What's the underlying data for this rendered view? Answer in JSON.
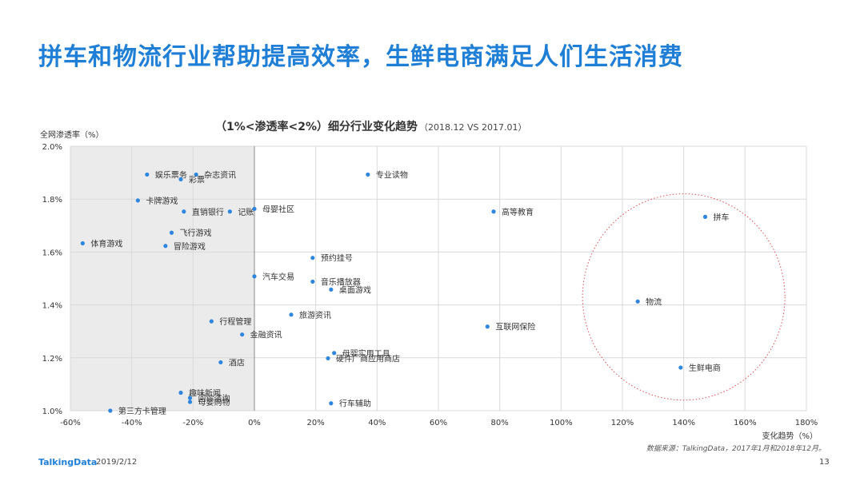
{
  "page": {
    "title": "拼车和物流行业帮助提高效率，生鲜电商满足人们生活消费",
    "source": "数据来源：TalkingData，2017年1月和2018年12月。",
    "logo": "TalkingData",
    "date": "2019/2/12",
    "page_number": "13"
  },
  "chart_data": {
    "type": "scatter",
    "title": "（1%<渗透率<2%）细分行业变化趋势",
    "subtitle": "（2018.12  VS 2017.01）",
    "xlabel": "变化趋势（%）",
    "ylabel": "全网渗透率（%）",
    "xlim": [
      -60,
      180
    ],
    "ylim": [
      1.0,
      2.0
    ],
    "x_ticks": [
      "-60%",
      "-40%",
      "-20%",
      "0%",
      "20%",
      "40%",
      "60%",
      "80%",
      "100%",
      "120%",
      "140%",
      "160%",
      "180%"
    ],
    "y_ticks": [
      "1.0%",
      "1.2%",
      "1.4%",
      "1.6%",
      "1.8%",
      "2.0%"
    ],
    "grid": true,
    "shaded_region": {
      "x": [
        -60,
        0
      ],
      "color": "#ebebeb"
    },
    "highlight_circle": {
      "cx": 140,
      "cy": 1.43,
      "rx": 33,
      "ry": 0.39,
      "color": "#e05050"
    },
    "point_color": "#2e86de",
    "points": [
      {
        "label": "娱乐票务",
        "x": -35,
        "y": 1.893
      },
      {
        "label": "杂志资讯",
        "x": -19,
        "y": 1.893
      },
      {
        "label": "彩票",
        "x": -24,
        "y": 1.875
      },
      {
        "label": "卡牌游戏",
        "x": -38,
        "y": 1.795
      },
      {
        "label": "直销银行",
        "x": -23,
        "y": 1.753
      },
      {
        "label": "记账",
        "x": -8,
        "y": 1.753
      },
      {
        "label": "母婴社区",
        "x": 0,
        "y": 1.763
      },
      {
        "label": "飞行游戏",
        "x": -27,
        "y": 1.673
      },
      {
        "label": "体育游戏",
        "x": -56,
        "y": 1.633
      },
      {
        "label": "冒险游戏",
        "x": -29,
        "y": 1.623
      },
      {
        "label": "专业读物",
        "x": 37,
        "y": 1.893
      },
      {
        "label": "高等教育",
        "x": 78,
        "y": 1.753
      },
      {
        "label": "拼车",
        "x": 147,
        "y": 1.733
      },
      {
        "label": "预约挂号",
        "x": 19,
        "y": 1.578
      },
      {
        "label": "汽车交易",
        "x": 0,
        "y": 1.508
      },
      {
        "label": "音乐播放器",
        "x": 19,
        "y": 1.488
      },
      {
        "label": "桌面游戏",
        "x": 25,
        "y": 1.458
      },
      {
        "label": "物流",
        "x": 125,
        "y": 1.413
      },
      {
        "label": "旅游资讯",
        "x": 12,
        "y": 1.363
      },
      {
        "label": "行程管理",
        "x": -14,
        "y": 1.338
      },
      {
        "label": "互联网保险",
        "x": 76,
        "y": 1.318
      },
      {
        "label": "金融资讯",
        "x": -4,
        "y": 1.288
      },
      {
        "label": "母婴实用工具",
        "x": 26,
        "y": 1.218
      },
      {
        "label": "硬件厂商应用商店",
        "x": 24,
        "y": 1.198
      },
      {
        "label": "酒店",
        "x": -11,
        "y": 1.183
      },
      {
        "label": "生鲜电商",
        "x": 139,
        "y": 1.163
      },
      {
        "label": "趣味新闻",
        "x": -24,
        "y": 1.068
      },
      {
        "label": "问诊咨询",
        "x": -21,
        "y": 1.048
      },
      {
        "label": "母婴购物",
        "x": -21,
        "y": 1.033
      },
      {
        "label": "行车辅助",
        "x": 25,
        "y": 1.028
      },
      {
        "label": "第三方卡管理",
        "x": -47,
        "y": 1.0
      }
    ]
  }
}
